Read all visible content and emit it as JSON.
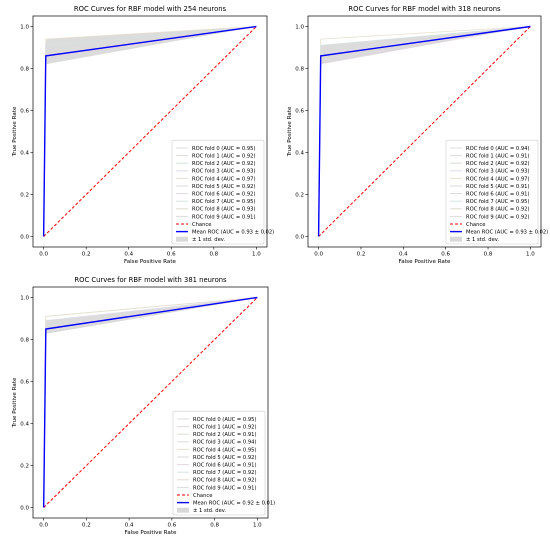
{
  "chart_data": [
    {
      "type": "line",
      "title": "ROC Curves for RBF model with 254 neurons",
      "xlabel": "False Positive Rate",
      "ylabel": "True Positive Rate",
      "xlim": [
        -0.05,
        1.05
      ],
      "ylim": [
        -0.05,
        1.05
      ],
      "xticks": [
        "0.0",
        "0.2",
        "0.4",
        "0.6",
        "0.8",
        "1.0"
      ],
      "yticks": [
        "0.0",
        "0.2",
        "0.4",
        "0.6",
        "0.8",
        "1.0"
      ],
      "legend_position": "lower-right",
      "grid": false,
      "series": [
        {
          "name": "ROC fold 0 (AUC = 0.95)",
          "x": [
            0,
            0.01,
            1
          ],
          "y": [
            0,
            0.91,
            1
          ]
        },
        {
          "name": "ROC fold 1 (AUC = 0.92)",
          "x": [
            0,
            0.01,
            1
          ],
          "y": [
            0,
            0.85,
            1
          ]
        },
        {
          "name": "ROC fold 2 (AUC = 0.92)",
          "x": [
            0,
            0.01,
            1
          ],
          "y": [
            0,
            0.85,
            1
          ]
        },
        {
          "name": "ROC fold 3 (AUC = 0.93)",
          "x": [
            0,
            0.01,
            1
          ],
          "y": [
            0,
            0.87,
            1
          ]
        },
        {
          "name": "ROC fold 4 (AUC = 0.97)",
          "x": [
            0,
            0.01,
            1
          ],
          "y": [
            0,
            0.94,
            1
          ]
        },
        {
          "name": "ROC fold 5 (AUC = 0.92)",
          "x": [
            0,
            0.01,
            1
          ],
          "y": [
            0,
            0.85,
            1
          ]
        },
        {
          "name": "ROC fold 6 (AUC = 0.92)",
          "x": [
            0,
            0.01,
            1
          ],
          "y": [
            0,
            0.85,
            1
          ]
        },
        {
          "name": "ROC fold 7 (AUC = 0.95)",
          "x": [
            0,
            0.01,
            1
          ],
          "y": [
            0,
            0.91,
            1
          ]
        },
        {
          "name": "ROC fold 8 (AUC = 0.93)",
          "x": [
            0,
            0.01,
            1
          ],
          "y": [
            0,
            0.87,
            1
          ]
        },
        {
          "name": "ROC fold 9 (AUC = 0.91)",
          "x": [
            0,
            0.01,
            1
          ],
          "y": [
            0,
            0.83,
            1
          ]
        },
        {
          "name": "Chance",
          "x": [
            0,
            1
          ],
          "y": [
            0,
            1
          ],
          "color": "#ff0000",
          "style": "dashed"
        },
        {
          "name": "Mean ROC (AUC = 0.93 ± 0.02)",
          "x": [
            0,
            0.01,
            1
          ],
          "y": [
            0,
            0.86,
            1
          ],
          "color": "#0000ff"
        },
        {
          "name": "± 1 std. dev.",
          "x": [
            0,
            0.01,
            1
          ],
          "y_upper": [
            0,
            0.94,
            1
          ],
          "y_lower": [
            0,
            0.82,
            1
          ],
          "color": "#bfbfbf",
          "style": "band"
        }
      ]
    },
    {
      "type": "line",
      "title": "ROC Curves for RBF model with 318 neurons",
      "xlabel": "False Positive Rate",
      "ylabel": "True Positive Rate",
      "xlim": [
        -0.05,
        1.05
      ],
      "ylim": [
        -0.05,
        1.05
      ],
      "xticks": [
        "0.0",
        "0.2",
        "0.4",
        "0.6",
        "0.8",
        "1.0"
      ],
      "yticks": [
        "0.0",
        "0.2",
        "0.4",
        "0.6",
        "0.8",
        "1.0"
      ],
      "legend_position": "lower-right",
      "grid": false,
      "series": [
        {
          "name": "ROC fold 0 (AUC = 0.94)",
          "x": [
            0,
            0.01,
            1
          ],
          "y": [
            0,
            0.89,
            1
          ]
        },
        {
          "name": "ROC fold 1 (AUC = 0.91)",
          "x": [
            0,
            0.01,
            1
          ],
          "y": [
            0,
            0.83,
            1
          ]
        },
        {
          "name": "ROC fold 2 (AUC = 0.92)",
          "x": [
            0,
            0.01,
            1
          ],
          "y": [
            0,
            0.85,
            1
          ]
        },
        {
          "name": "ROC fold 3 (AUC = 0.93)",
          "x": [
            0,
            0.01,
            1
          ],
          "y": [
            0,
            0.87,
            1
          ]
        },
        {
          "name": "ROC fold 4 (AUC = 0.97)",
          "x": [
            0,
            0.01,
            1
          ],
          "y": [
            0,
            0.94,
            1
          ]
        },
        {
          "name": "ROC fold 5 (AUC = 0.91)",
          "x": [
            0,
            0.01,
            1
          ],
          "y": [
            0,
            0.83,
            1
          ]
        },
        {
          "name": "ROC fold 6 (AUC = 0.91)",
          "x": [
            0,
            0.01,
            1
          ],
          "y": [
            0,
            0.83,
            1
          ]
        },
        {
          "name": "ROC fold 7 (AUC = 0.95)",
          "x": [
            0,
            0.01,
            1
          ],
          "y": [
            0,
            0.91,
            1
          ]
        },
        {
          "name": "ROC fold 8 (AUC = 0.92)",
          "x": [
            0,
            0.01,
            1
          ],
          "y": [
            0,
            0.85,
            1
          ]
        },
        {
          "name": "ROC fold 9 (AUC = 0.92)",
          "x": [
            0,
            0.01,
            1
          ],
          "y": [
            0,
            0.85,
            1
          ]
        },
        {
          "name": "Chance",
          "x": [
            0,
            1
          ],
          "y": [
            0,
            1
          ],
          "color": "#ff0000",
          "style": "dashed"
        },
        {
          "name": "Mean ROC (AUC = 0.93 ± 0.02)",
          "x": [
            0,
            0.01,
            1
          ],
          "y": [
            0,
            0.86,
            1
          ],
          "color": "#0000ff"
        },
        {
          "name": "± 1 std. dev.",
          "x": [
            0,
            0.01,
            1
          ],
          "y_upper": [
            0,
            0.91,
            1
          ],
          "y_lower": [
            0,
            0.82,
            1
          ],
          "color": "#bfbfbf",
          "style": "band"
        }
      ]
    },
    {
      "type": "line",
      "title": "ROC Curves for RBF model with 381 neurons",
      "xlabel": "False Positive Rate",
      "ylabel": "True Positive Rate",
      "xlim": [
        -0.05,
        1.05
      ],
      "ylim": [
        -0.05,
        1.05
      ],
      "xticks": [
        "0.0",
        "0.2",
        "0.4",
        "0.6",
        "0.8",
        "1.0"
      ],
      "yticks": [
        "0.0",
        "0.2",
        "0.4",
        "0.6",
        "0.8",
        "1.0"
      ],
      "legend_position": "lower-right",
      "grid": false,
      "series": [
        {
          "name": "ROC fold 0 (AUC = 0.95)",
          "x": [
            0,
            0.01,
            1
          ],
          "y": [
            0,
            0.91,
            1
          ]
        },
        {
          "name": "ROC fold 1 (AUC = 0.92)",
          "x": [
            0,
            0.01,
            1
          ],
          "y": [
            0,
            0.85,
            1
          ]
        },
        {
          "name": "ROC fold 2 (AUC = 0.91)",
          "x": [
            0,
            0.01,
            1
          ],
          "y": [
            0,
            0.83,
            1
          ]
        },
        {
          "name": "ROC fold 3 (AUC = 0.94)",
          "x": [
            0,
            0.01,
            1
          ],
          "y": [
            0,
            0.89,
            1
          ]
        },
        {
          "name": "ROC fold 4 (AUC = 0.95)",
          "x": [
            0,
            0.01,
            1
          ],
          "y": [
            0,
            0.91,
            1
          ]
        },
        {
          "name": "ROC fold 5 (AUC = 0.92)",
          "x": [
            0,
            0.01,
            1
          ],
          "y": [
            0,
            0.85,
            1
          ]
        },
        {
          "name": "ROC fold 6 (AUC = 0.91)",
          "x": [
            0,
            0.01,
            1
          ],
          "y": [
            0,
            0.83,
            1
          ]
        },
        {
          "name": "ROC fold 7 (AUC = 0.92)",
          "x": [
            0,
            0.01,
            1
          ],
          "y": [
            0,
            0.85,
            1
          ]
        },
        {
          "name": "ROC fold 8 (AUC = 0.92)",
          "x": [
            0,
            0.01,
            1
          ],
          "y": [
            0,
            0.85,
            1
          ]
        },
        {
          "name": "ROC fold 9 (AUC = 0.91)",
          "x": [
            0,
            0.01,
            1
          ],
          "y": [
            0,
            0.83,
            1
          ]
        },
        {
          "name": "Chance",
          "x": [
            0,
            1
          ],
          "y": [
            0,
            1
          ],
          "color": "#ff0000",
          "style": "dashed"
        },
        {
          "name": "Mean ROC (AUC = 0.92 ± 0.01)",
          "x": [
            0,
            0.01,
            1
          ],
          "y": [
            0,
            0.85,
            1
          ],
          "color": "#0000ff"
        },
        {
          "name": "± 1 std. dev.",
          "x": [
            0,
            0.01,
            1
          ],
          "y_upper": [
            0,
            0.89,
            1
          ],
          "y_lower": [
            0,
            0.83,
            1
          ],
          "color": "#bfbfbf",
          "style": "band"
        }
      ]
    }
  ]
}
